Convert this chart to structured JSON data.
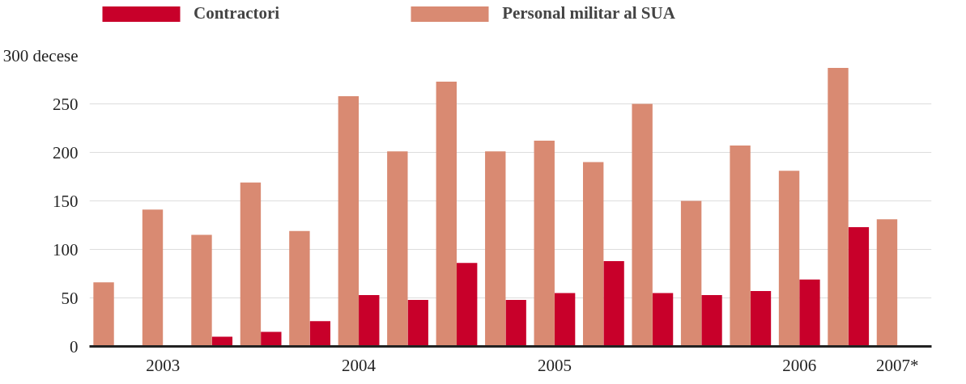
{
  "chart_data": {
    "type": "bar",
    "categories": [
      null,
      "2003",
      null,
      null,
      null,
      "2004",
      null,
      null,
      null,
      "2005",
      null,
      null,
      null,
      null,
      "2006",
      null,
      "2007*"
    ],
    "series": [
      {
        "name": "Contractori",
        "color": "#c8002a",
        "values": [
          null,
          null,
          10,
          15,
          26,
          53,
          48,
          86,
          48,
          55,
          88,
          55,
          53,
          57,
          69,
          123,
          null
        ]
      },
      {
        "name": "Personal militar al SUA",
        "color": "#d98a72",
        "values": [
          66,
          141,
          115,
          169,
          119,
          258,
          201,
          273,
          201,
          212,
          190,
          250,
          150,
          207,
          181,
          287,
          131
        ]
      }
    ],
    "ylim": [
      0,
      300
    ],
    "yticks": [
      0,
      50,
      100,
      150,
      200,
      250,
      {
        "value": 300,
        "label": "300 decese"
      }
    ],
    "grid": "y",
    "legend": "top left"
  }
}
